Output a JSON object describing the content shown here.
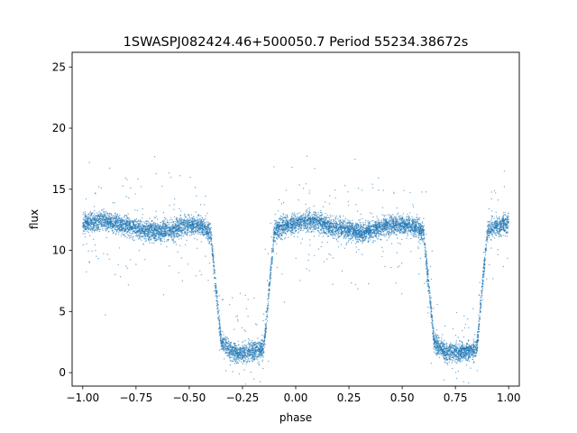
{
  "chart_data": {
    "type": "scatter",
    "title": "1SWASPJ082424.46+500050.7 Period 55234.38672s",
    "xlabel": "phase",
    "ylabel": "flux",
    "xlim": [
      -1.05,
      1.05
    ],
    "ylim": [
      -1.1,
      26.2
    ],
    "xticks": [
      -1.0,
      -0.75,
      -0.5,
      -0.25,
      0.0,
      0.25,
      0.5,
      0.75,
      1.0
    ],
    "xtick_labels": [
      "−1.00",
      "−0.75",
      "−0.50",
      "−0.25",
      "0.00",
      "0.25",
      "0.50",
      "0.75",
      "1.00"
    ],
    "yticks": [
      0,
      5,
      10,
      15,
      20,
      25
    ],
    "ytick_labels": [
      "0",
      "5",
      "10",
      "15",
      "20",
      "25"
    ],
    "grid": false,
    "legend": "none",
    "point_color": "#1f77b4",
    "series": [
      {
        "x": [
          -1.0,
          -0.95,
          -0.9,
          -0.85,
          -0.8,
          -0.75,
          -0.7,
          -0.65,
          -0.6,
          -0.55,
          -0.5,
          -0.45,
          -0.4,
          -0.35,
          -0.3,
          -0.25,
          -0.2,
          -0.15,
          -0.1,
          -0.05,
          0.0,
          0.05,
          0.1,
          0.15,
          0.2,
          0.25,
          0.3,
          0.35,
          0.4,
          0.45,
          0.5,
          0.55,
          0.6,
          0.65,
          0.7,
          0.75,
          0.8,
          0.85,
          0.9,
          0.95,
          1.0
        ],
        "y": [
          12.1,
          12.3,
          12.4,
          12.2,
          12.0,
          11.8,
          11.6,
          11.5,
          11.6,
          11.9,
          12.1,
          12.0,
          11.5,
          2.5,
          1.7,
          1.6,
          1.7,
          1.9,
          11.6,
          12.0,
          12.2,
          12.4,
          12.3,
          12.0,
          11.8,
          11.6,
          11.5,
          11.6,
          11.9,
          12.1,
          12.1,
          12.0,
          11.6,
          2.5,
          1.7,
          1.6,
          1.7,
          1.9,
          11.6,
          12.0,
          12.2
        ]
      }
    ]
  }
}
